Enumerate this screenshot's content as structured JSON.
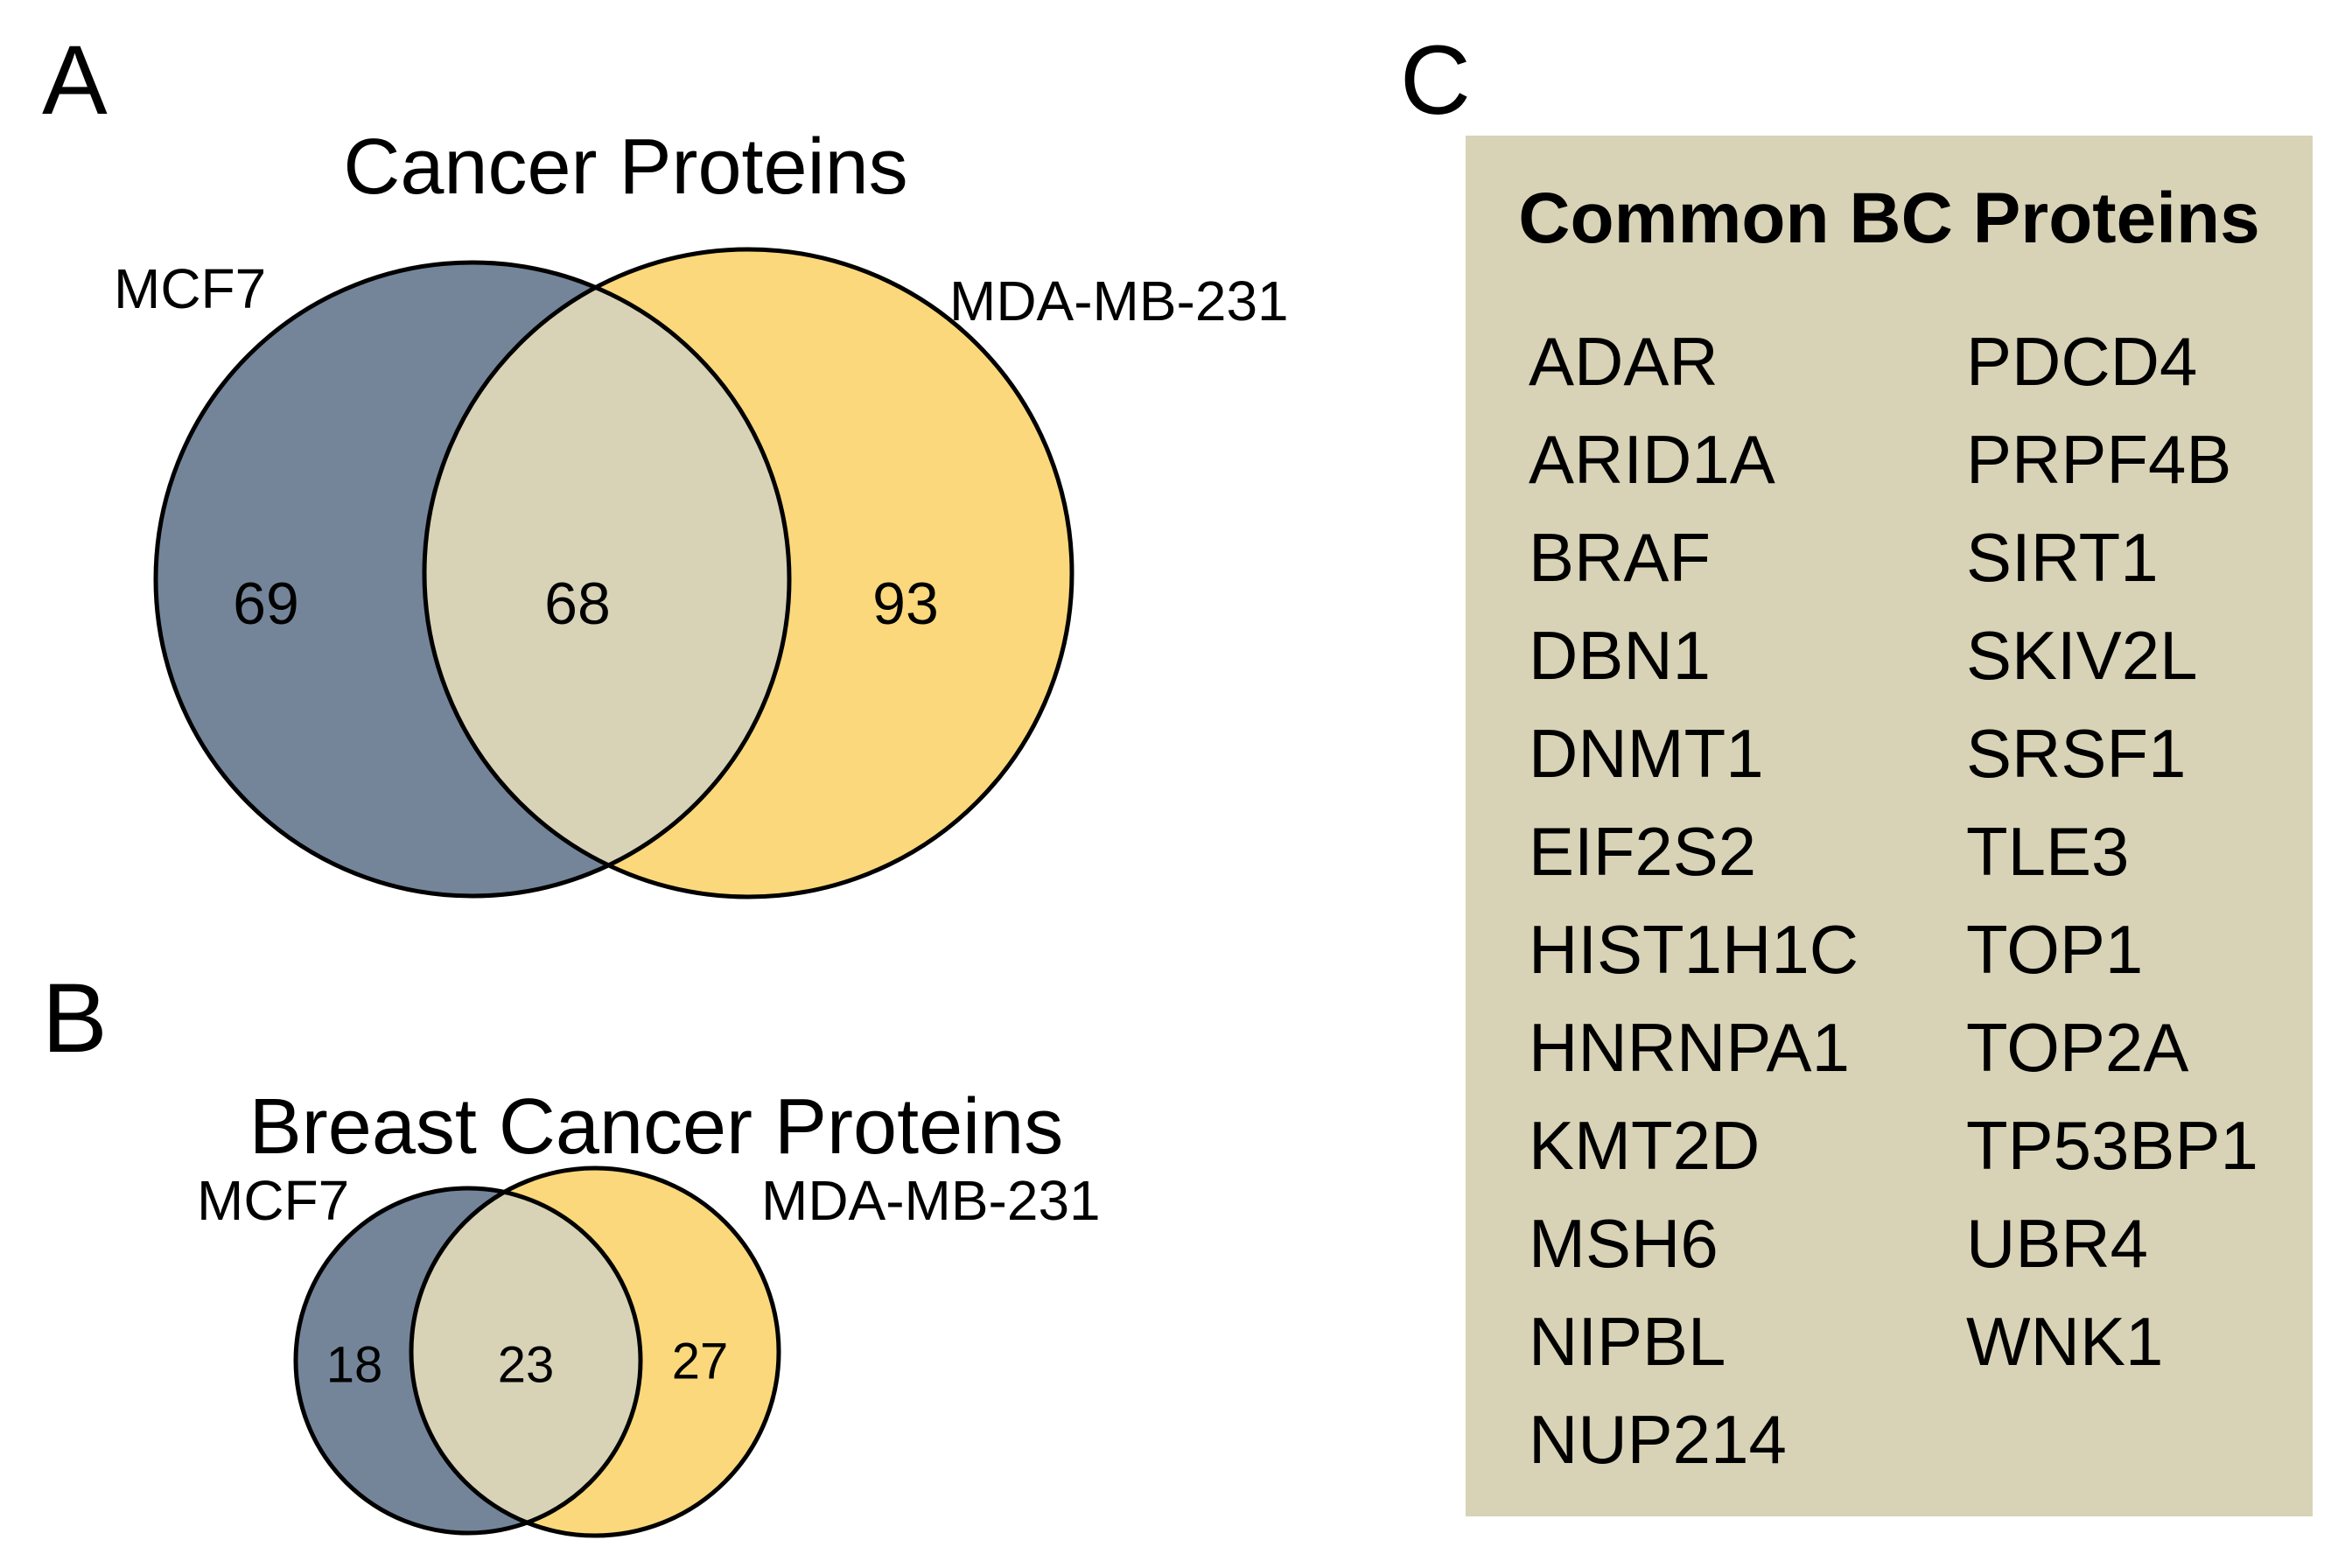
{
  "panelA": {
    "label": "A",
    "title": "Cancer Proteins",
    "left_label": "MCF7",
    "right_label": "MDA-MB-231",
    "left_count": "69",
    "overlap_count": "68",
    "right_count": "93"
  },
  "panelB": {
    "label": "B",
    "title": "Breast Cancer Proteins",
    "left_label": "MCF7",
    "right_label": "MDA-MB-231",
    "left_count": "18",
    "overlap_count": "23",
    "right_count": "27"
  },
  "panelC": {
    "label": "C",
    "title": "Common BC Proteins",
    "col1": [
      "ADAR",
      "ARID1A",
      "BRAF",
      "DBN1",
      "DNMT1",
      "EIF2S2",
      "HIST1H1C",
      "HNRNPA1",
      "KMT2D",
      "MSH6",
      "NIPBL",
      "NUP214"
    ],
    "col2": [
      "PDCD4",
      "PRPF4B",
      "SIRT1",
      "SKIV2L",
      "SRSF1",
      "TLE3",
      "TOP1",
      "TOP2A",
      "TP53BP1",
      "UBR4",
      "WNK1"
    ]
  },
  "colors": {
    "mcf7_fill": "#74859A",
    "mda_fill": "#FBD87B",
    "overlap_fill": "#D8D3B6",
    "panel_c_bg": "#D8D3B6",
    "stroke": "#000000"
  },
  "chart_data": [
    {
      "type": "venn",
      "title": "Cancer Proteins",
      "sets": [
        "MCF7",
        "MDA-MB-231"
      ],
      "values": {
        "MCF7_only": 69,
        "intersection": 68,
        "MDA-MB-231_only": 93
      }
    },
    {
      "type": "venn",
      "title": "Breast Cancer Proteins",
      "sets": [
        "MCF7",
        "MDA-MB-231"
      ],
      "values": {
        "MCF7_only": 18,
        "intersection": 23,
        "MDA-MB-231_only": 27
      }
    },
    {
      "type": "table",
      "title": "Common BC Proteins",
      "values": [
        "ADAR",
        "ARID1A",
        "BRAF",
        "DBN1",
        "DNMT1",
        "EIF2S2",
        "HIST1H1C",
        "HNRNPA1",
        "KMT2D",
        "MSH6",
        "NIPBL",
        "NUP214",
        "PDCD4",
        "PRPF4B",
        "SIRT1",
        "SKIV2L",
        "SRSF1",
        "TLE3",
        "TOP1",
        "TOP2A",
        "TP53BP1",
        "UBR4",
        "WNK1"
      ]
    }
  ]
}
